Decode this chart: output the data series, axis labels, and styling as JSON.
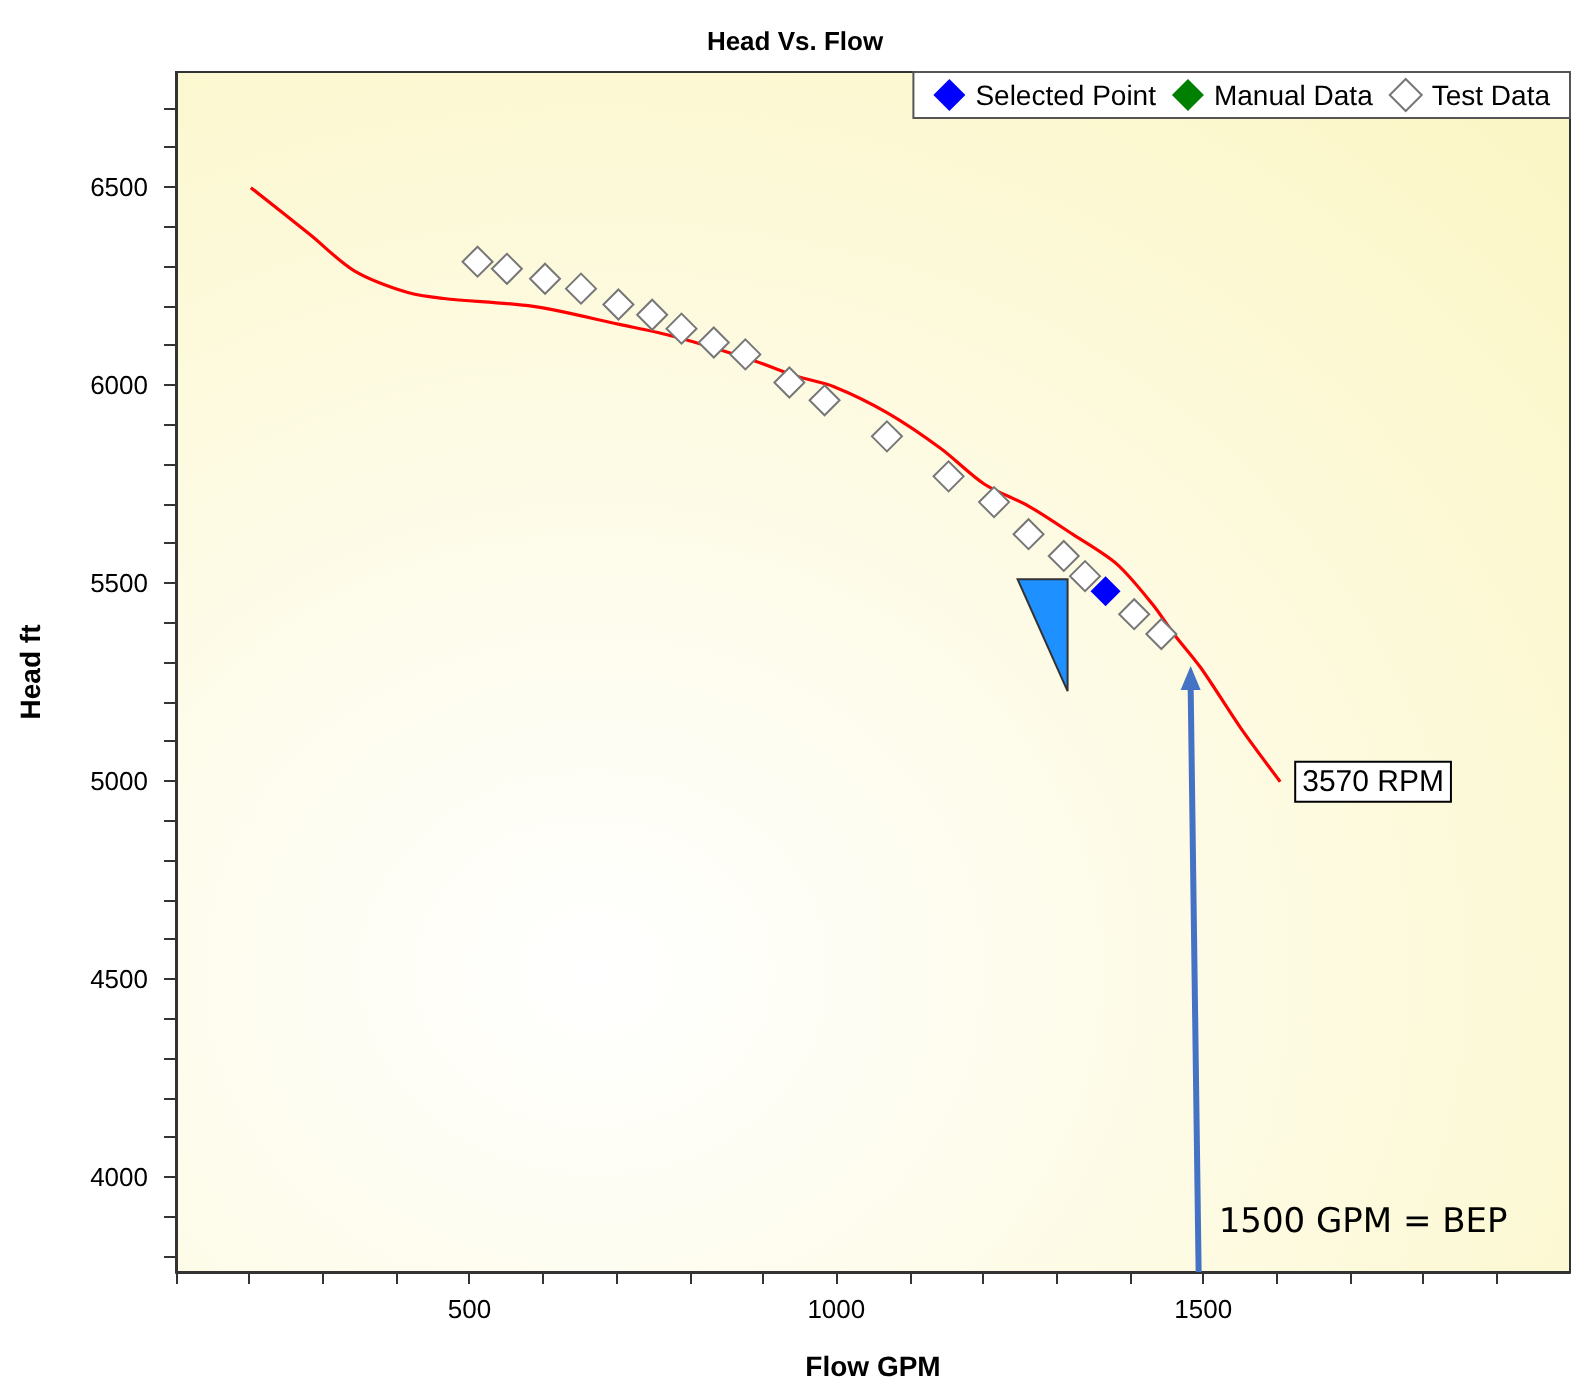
{
  "chart_data": {
    "type": "scatter",
    "title": "Head Vs. Flow",
    "xlabel": "Flow GPM",
    "ylabel": "Head ft",
    "xlim": [
      100,
      2000
    ],
    "xticks": [
      {
        "value": 100,
        "label": null
      },
      {
        "value": 200,
        "label": null
      },
      {
        "value": 300,
        "label": null
      },
      {
        "value": 400,
        "label": null
      },
      500,
      {
        "value": 600,
        "label": null
      },
      {
        "value": 700,
        "label": null
      },
      {
        "value": 800,
        "label": null
      },
      {
        "value": 900,
        "label": null
      },
      1000,
      {
        "value": 1100,
        "label": null
      },
      {
        "value": 1200,
        "label": null
      },
      {
        "value": 1300,
        "label": null
      },
      {
        "value": 1400,
        "label": null
      },
      1500,
      {
        "value": 1600,
        "label": null
      },
      {
        "value": 1700,
        "label": null
      },
      {
        "value": 1800,
        "label": null
      },
      {
        "value": 1900,
        "label": null
      }
    ],
    "ylim": [
      3760,
      6790
    ],
    "yticks": [
      {
        "value": 3800,
        "label": null
      },
      {
        "value": 3900,
        "label": null
      },
      4000,
      {
        "value": 4100,
        "label": null
      },
      {
        "value": 4200,
        "label": null
      },
      {
        "value": 4300,
        "label": null
      },
      {
        "value": 4400,
        "label": null
      },
      4500,
      {
        "value": 4600,
        "label": null
      },
      {
        "value": 4700,
        "label": null
      },
      {
        "value": 4800,
        "label": null
      },
      {
        "value": 4900,
        "label": null
      },
      5000,
      {
        "value": 5100,
        "label": null
      },
      {
        "value": 5200,
        "label": null
      },
      {
        "value": 5300,
        "label": null
      },
      {
        "value": 5400,
        "label": null
      },
      5500,
      {
        "value": 5600,
        "label": null
      },
      {
        "value": 5700,
        "label": null
      },
      {
        "value": 5800,
        "label": null
      },
      {
        "value": 5900,
        "label": null
      },
      6000,
      {
        "value": 6100,
        "label": null
      },
      {
        "value": 6200,
        "label": null
      },
      {
        "value": 6300,
        "label": null
      },
      {
        "value": 6400,
        "label": null
      },
      6500,
      {
        "value": 6600,
        "label": null
      },
      {
        "value": 6700,
        "label": null
      }
    ],
    "grid": false,
    "legend": "top right",
    "marker": "diamond",
    "series": [
      {
        "name": "Selected Point",
        "color": "#0000ff",
        "x": [
          1367
        ],
        "values": [
          5479
        ]
      },
      {
        "name": "Manual Data",
        "color": "#008000"
      },
      {
        "name": "Test Data",
        "color": "#ffffff",
        "x": [
          511,
          551,
          603,
          652,
          703,
          749,
          789,
          833,
          876,
          936,
          984,
          1069,
          1153,
          1215,
          1262,
          1310,
          1339,
          1406,
          1443
        ],
        "values": [
          6311,
          6293,
          6268,
          6243,
          6203,
          6177,
          6142,
          6107,
          6077,
          6006,
          5961,
          5870,
          5769,
          5704,
          5623,
          5568,
          5517,
          5421,
          5371
        ]
      },
      {
        "name": "3570 RPM",
        "type": "line",
        "marker": "none",
        "color": "#ff0000",
        "x": [
          202,
          283,
          343,
          416,
          465,
          587,
          706,
          779,
          888,
          947,
          996,
          1069,
          1142,
          1202,
          1262,
          1322,
          1382,
          1431,
          1460,
          1497,
          1551,
          1605
        ],
        "values": [
          6498,
          6379,
          6288,
          6233,
          6218,
          6198,
          6152,
          6122,
          6061,
          6021,
          5996,
          5930,
          5840,
          5749,
          5694,
          5623,
          5548,
          5446,
          5371,
          5285,
          5134,
          4998
        ]
      }
    ],
    "annotations": [
      "1500 GPM = BEP"
    ]
  }
}
